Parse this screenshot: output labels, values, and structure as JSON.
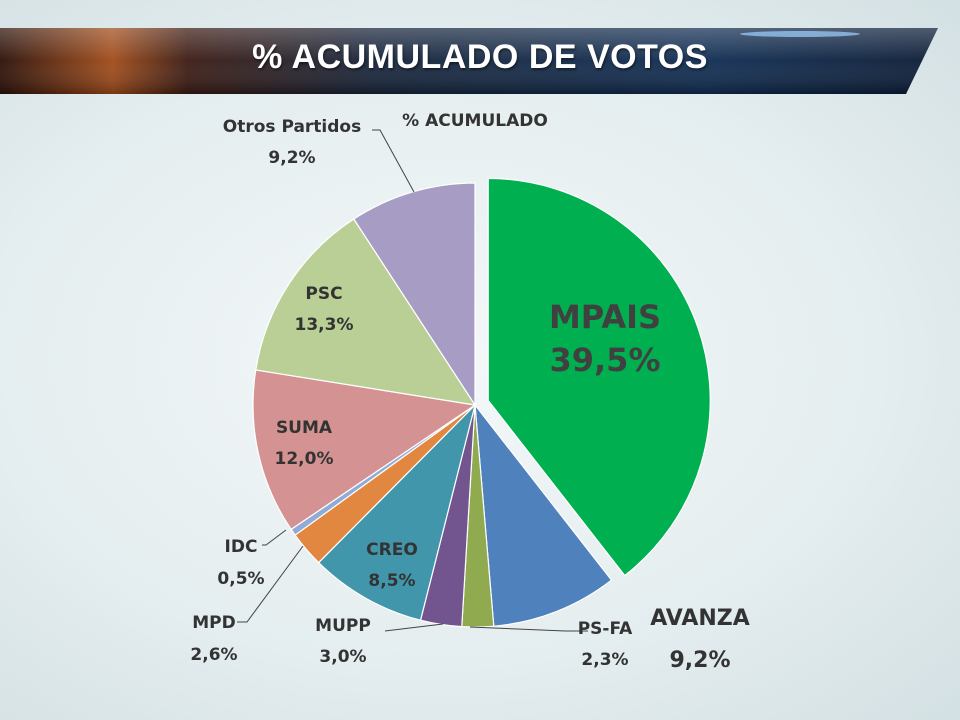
{
  "header": {
    "title": "% ACUMULADO DE VOTOS"
  },
  "chart_data": {
    "type": "pie",
    "title": "% ACUMULADO",
    "slices": [
      {
        "name": "MPAIS",
        "value": 39.5,
        "label": "39,5%",
        "color": "#00b050",
        "exploded": true
      },
      {
        "name": "AVANZA",
        "value": 9.2,
        "label": "9,2%",
        "color": "#4f81bd",
        "exploded": false
      },
      {
        "name": "PS-FA",
        "value": 2.3,
        "label": "2,3%",
        "color": "#8faa4f",
        "exploded": false
      },
      {
        "name": "MUPP",
        "value": 3.0,
        "label": "3,0%",
        "color": "#72558f",
        "exploded": false
      },
      {
        "name": "CREO",
        "value": 8.5,
        "label": "8,5%",
        "color": "#4296ab",
        "exploded": false
      },
      {
        "name": "MPD",
        "value": 2.6,
        "label": "2,6%",
        "color": "#e2873f",
        "exploded": false
      },
      {
        "name": "IDC",
        "value": 0.5,
        "label": "0,5%",
        "color": "#90acd6",
        "exploded": false
      },
      {
        "name": "SUMA",
        "value": 12.0,
        "label": "12,0%",
        "color": "#d49392",
        "exploded": false
      },
      {
        "name": "PSC",
        "value": 13.3,
        "label": "13,3%",
        "color": "#bacf95",
        "exploded": false
      },
      {
        "name": "Otros Partidos",
        "value": 9.2,
        "label": "9,2%",
        "color": "#a79cc4",
        "exploded": false
      }
    ],
    "legend": "none"
  }
}
